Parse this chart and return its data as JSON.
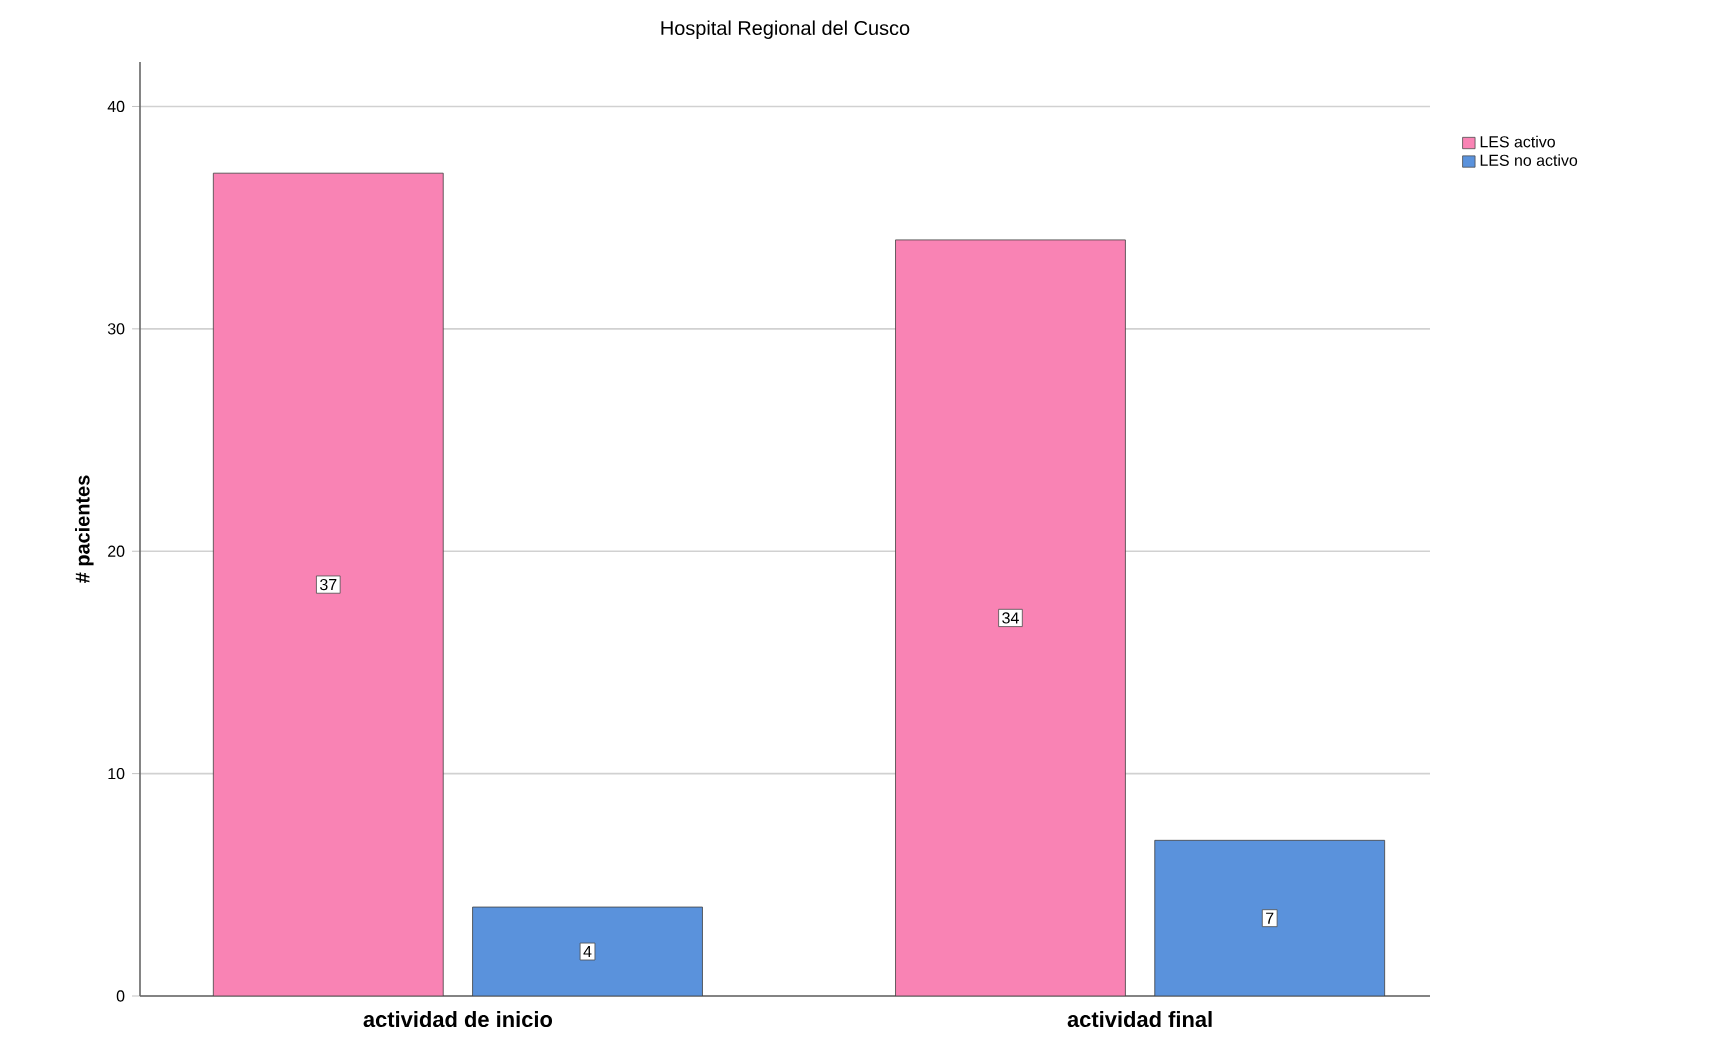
{
  "chart_data": {
    "type": "bar",
    "title": "Hospital Regional del Cusco",
    "ylabel": "# pacientes",
    "categories": [
      "actividad de inicio",
      "actividad final"
    ],
    "series": [
      {
        "name": "LES activo",
        "color": "#f983b4",
        "values": [
          37,
          34
        ]
      },
      {
        "name": "LES no activo",
        "color": "#5a92dc",
        "values": [
          4,
          7
        ]
      }
    ],
    "ylim": [
      0,
      42
    ],
    "yticks": [
      0,
      10,
      20,
      30,
      40
    ],
    "grid": "y",
    "legend": "top right",
    "data_labels": true
  }
}
